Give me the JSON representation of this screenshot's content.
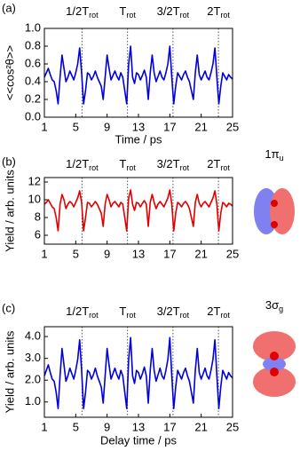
{
  "chart_data": [
    {
      "type": "line",
      "panel": "(a)",
      "xlabel": "Time / ps",
      "ylabel": "<<cos²θ>>",
      "x": [
        1,
        1.25,
        1.5,
        1.75,
        2,
        2.25,
        2.5,
        2.75,
        3,
        3.25,
        3.5,
        3.75,
        4,
        4.25,
        4.5,
        4.75,
        5,
        5.25,
        5.5,
        5.75,
        6,
        6.25,
        6.5,
        6.75,
        7,
        7.25,
        7.5,
        7.75,
        8,
        8.25,
        8.5,
        8.75,
        9,
        9.25,
        9.5,
        9.75,
        10,
        10.25,
        10.5,
        10.75,
        11,
        11.25,
        11.5,
        11.75,
        12,
        12.25,
        12.5,
        12.75,
        13,
        13.25,
        13.5,
        13.75,
        14,
        14.25,
        14.5,
        14.75,
        15,
        15.25,
        15.5,
        15.75,
        16,
        16.25,
        16.5,
        16.75,
        17,
        17.25,
        17.5,
        17.75,
        18,
        18.25,
        18.5,
        18.75,
        19,
        19.25,
        19.5,
        19.75,
        20,
        20.25,
        20.5,
        20.75,
        21,
        21.25,
        21.5,
        21.75,
        22,
        22.25,
        22.5,
        22.75,
        23,
        23.25,
        23.5,
        23.75,
        24,
        24.25,
        24.5,
        24.75,
        25
      ],
      "series": [
        {
          "color": "#0000dd",
          "values": [
            0.45,
            0.5,
            0.55,
            0.48,
            0.42,
            0.4,
            0.3,
            0.15,
            0.45,
            0.7,
            0.55,
            0.4,
            0.45,
            0.52,
            0.47,
            0.42,
            0.5,
            0.6,
            0.78,
            0.5,
            0.15,
            0.3,
            0.5,
            0.48,
            0.42,
            0.46,
            0.52,
            0.45,
            0.4,
            0.35,
            0.2,
            0.45,
            0.7,
            0.55,
            0.42,
            0.47,
            0.52,
            0.46,
            0.42,
            0.5,
            0.45,
            0.3,
            0.15,
            0.6,
            0.8,
            0.45,
            0.38,
            0.5,
            0.48,
            0.42,
            0.47,
            0.53,
            0.45,
            0.2,
            0.5,
            0.7,
            0.5,
            0.4,
            0.46,
            0.52,
            0.45,
            0.42,
            0.5,
            0.6,
            0.8,
            0.45,
            0.15,
            0.35,
            0.5,
            0.46,
            0.42,
            0.48,
            0.52,
            0.45,
            0.4,
            0.3,
            0.2,
            0.5,
            0.7,
            0.48,
            0.42,
            0.47,
            0.52,
            0.45,
            0.42,
            0.5,
            0.6,
            0.78,
            0.45,
            0.15,
            0.35,
            0.5,
            0.46,
            0.42,
            0.48,
            0.45,
            0.43
          ]
        }
      ],
      "xlim": [
        1,
        25
      ],
      "xticks": [
        1,
        5,
        9,
        13,
        17,
        21,
        25
      ],
      "ylim": [
        0,
        1
      ],
      "yticks": [
        {
          "value": 0,
          "label": "0.0"
        },
        0.2,
        0.4,
        0.6,
        0.8,
        {
          "value": 1,
          "label": "1.0"
        }
      ],
      "annotations": [
        {
          "x": 5.8,
          "text": "1/2T",
          "sub": "rot"
        },
        {
          "x": 11.6,
          "text": "T",
          "sub": "rot"
        },
        {
          "x": 17.4,
          "text": "3/2T",
          "sub": "rot"
        },
        {
          "x": 23.2,
          "text": "2T",
          "sub": "rot"
        }
      ]
    },
    {
      "type": "line",
      "panel": "(b)",
      "ylabel": "Yield / arb. units",
      "inset": "1π",
      "inset_sub": "u",
      "x": [
        1,
        1.25,
        1.5,
        1.75,
        2,
        2.25,
        2.5,
        2.75,
        3,
        3.25,
        3.5,
        3.75,
        4,
        4.25,
        4.5,
        4.75,
        5,
        5.25,
        5.5,
        5.75,
        6,
        6.25,
        6.5,
        6.75,
        7,
        7.25,
        7.5,
        7.75,
        8,
        8.25,
        8.5,
        8.75,
        9,
        9.25,
        9.5,
        9.75,
        10,
        10.25,
        10.5,
        10.75,
        11,
        11.25,
        11.5,
        11.75,
        12,
        12.25,
        12.5,
        12.75,
        13,
        13.25,
        13.5,
        13.75,
        14,
        14.25,
        14.5,
        14.75,
        15,
        15.25,
        15.5,
        15.75,
        16,
        16.25,
        16.5,
        16.75,
        17,
        17.25,
        17.5,
        17.75,
        18,
        18.25,
        18.5,
        18.75,
        19,
        19.25,
        19.5,
        19.75,
        20,
        20.25,
        20.5,
        20.75,
        21,
        21.25,
        21.5,
        21.75,
        22,
        22.25,
        22.5,
        22.75,
        23,
        23.25,
        23.5,
        23.75,
        24,
        24.25,
        24.5,
        24.75,
        25
      ],
      "series": [
        {
          "color": "#e00000",
          "values": [
            9.5,
            9.7,
            10,
            9.6,
            9.2,
            9.0,
            8.0,
            6.5,
            9.5,
            10.6,
            10,
            9.0,
            9.5,
            9.8,
            9.6,
            9.2,
            9.7,
            10.2,
            11.0,
            9.7,
            6.5,
            8.0,
            9.7,
            9.6,
            9.2,
            9.5,
            9.8,
            9.5,
            9.0,
            8.5,
            7.0,
            9.5,
            10.6,
            10,
            9.2,
            9.6,
            9.8,
            9.5,
            9.2,
            9.7,
            9.5,
            8.0,
            6.5,
            10.2,
            11.1,
            9.5,
            8.8,
            9.7,
            9.6,
            9.2,
            9.6,
            9.9,
            9.5,
            7.0,
            9.7,
            10.6,
            9.7,
            9.0,
            9.5,
            9.8,
            9.5,
            9.2,
            9.7,
            10.2,
            11.1,
            9.5,
            6.5,
            8.5,
            9.7,
            9.5,
            9.2,
            9.6,
            9.8,
            9.5,
            9.0,
            8.0,
            7.0,
            9.7,
            10.6,
            9.6,
            9.2,
            9.6,
            9.8,
            9.5,
            9.2,
            9.7,
            10.2,
            11.0,
            9.5,
            6.5,
            8.5,
            9.7,
            9.5,
            9.2,
            9.6,
            9.5,
            9.3
          ]
        }
      ],
      "xlim": [
        1,
        25
      ],
      "xticks": [
        1,
        5,
        9,
        13,
        17,
        21,
        25
      ],
      "ylim": [
        5,
        12.5
      ],
      "yticks": [
        6,
        8,
        10,
        12
      ],
      "annotations": [
        {
          "x": 5.8,
          "text": "1/2T",
          "sub": "rot"
        },
        {
          "x": 11.6,
          "text": "T",
          "sub": "rot"
        },
        {
          "x": 17.4,
          "text": "3/2T",
          "sub": "rot"
        },
        {
          "x": 23.2,
          "text": "2T",
          "sub": "rot"
        }
      ]
    },
    {
      "type": "line",
      "panel": "(c)",
      "xlabel": "Delay time / ps",
      "ylabel": "Yield / arb. units",
      "inset": "3σ",
      "inset_sub": "g",
      "x": [
        1,
        1.25,
        1.5,
        1.75,
        2,
        2.25,
        2.5,
        2.75,
        3,
        3.25,
        3.5,
        3.75,
        4,
        4.25,
        4.5,
        4.75,
        5,
        5.25,
        5.5,
        5.75,
        6,
        6.25,
        6.5,
        6.75,
        7,
        7.25,
        7.5,
        7.75,
        8,
        8.25,
        8.5,
        8.75,
        9,
        9.25,
        9.5,
        9.75,
        10,
        10.25,
        10.5,
        10.75,
        11,
        11.25,
        11.5,
        11.75,
        12,
        12.25,
        12.5,
        12.75,
        13,
        13.25,
        13.5,
        13.75,
        14,
        14.25,
        14.5,
        14.75,
        15,
        15.25,
        15.5,
        15.75,
        16,
        16.25,
        16.5,
        16.75,
        17,
        17.25,
        17.5,
        17.75,
        18,
        18.25,
        18.5,
        18.75,
        19,
        19.25,
        19.5,
        19.75,
        20,
        20.25,
        20.5,
        20.75,
        21,
        21.25,
        21.5,
        21.75,
        22,
        22.25,
        22.5,
        22.75,
        23,
        23.25,
        23.5,
        23.75,
        24,
        24.25,
        24.5,
        24.75,
        25
      ],
      "series": [
        {
          "color": "#0000dd",
          "values": [
            2.2,
            2.45,
            2.7,
            2.35,
            2.05,
            1.95,
            1.45,
            0.7,
            2.2,
            3.45,
            2.7,
            1.95,
            2.2,
            2.55,
            2.3,
            2.05,
            2.45,
            2.95,
            3.85,
            2.45,
            0.7,
            1.45,
            2.45,
            2.35,
            2.05,
            2.25,
            2.55,
            2.2,
            1.95,
            1.7,
            0.95,
            2.2,
            3.45,
            2.7,
            2.05,
            2.3,
            2.55,
            2.25,
            2.05,
            2.45,
            2.2,
            1.45,
            0.7,
            2.95,
            3.95,
            2.2,
            1.85,
            2.45,
            2.35,
            2.05,
            2.3,
            2.6,
            2.2,
            0.95,
            2.45,
            3.45,
            2.45,
            1.95,
            2.25,
            2.55,
            2.2,
            2.05,
            2.45,
            2.95,
            3.95,
            2.2,
            0.7,
            1.7,
            2.45,
            2.25,
            2.05,
            2.35,
            2.55,
            2.2,
            1.95,
            1.45,
            0.95,
            2.45,
            3.45,
            2.35,
            2.05,
            2.3,
            2.55,
            2.2,
            2.05,
            2.45,
            2.95,
            3.85,
            2.2,
            0.7,
            1.7,
            2.45,
            2.25,
            2.05,
            2.35,
            2.2,
            2.1
          ]
        }
      ],
      "xlim": [
        1,
        25
      ],
      "xticks": [
        1,
        5,
        9,
        13,
        17,
        21,
        25
      ],
      "ylim": [
        0.3,
        4.45
      ],
      "yticks": [
        {
          "value": 1,
          "label": "1.0"
        },
        {
          "value": 2,
          "label": "2.0"
        },
        {
          "value": 3,
          "label": "3.0"
        },
        {
          "value": 4,
          "label": "4.0"
        }
      ],
      "annotations": [
        {
          "x": 5.8,
          "text": "1/2T",
          "sub": "rot"
        },
        {
          "x": 11.6,
          "text": "T",
          "sub": "rot"
        },
        {
          "x": 17.4,
          "text": "3/2T",
          "sub": "rot"
        },
        {
          "x": 23.2,
          "text": "2T",
          "sub": "rot"
        }
      ]
    }
  ]
}
